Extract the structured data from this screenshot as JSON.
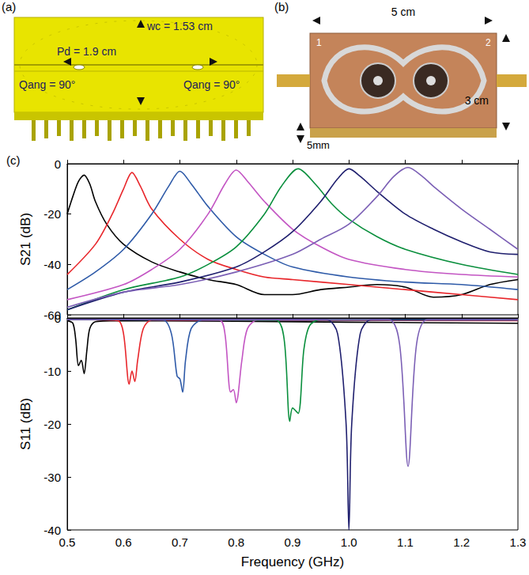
{
  "panel_a": {
    "letter": "(a)",
    "labels": {
      "width": "wc = 1.53 cm",
      "pitch": "Pd = 1.9 cm",
      "angle_left": "Qang = 90°",
      "angle_right": "Qang = 90°"
    }
  },
  "panel_b": {
    "letter": "(b)",
    "labels": {
      "length": "5 cm",
      "width": "3 cm",
      "height": "5mm",
      "port_1": "1",
      "port_2": "2"
    }
  },
  "panel_c": {
    "letter": "(c)"
  },
  "chart_data": [
    {
      "type": "line",
      "y_label": "S21 (dB)",
      "xlim": [
        0.5,
        1.3
      ],
      "xticks": [
        0.5,
        0.6,
        0.7,
        0.8,
        0.9,
        {
          "value": 1,
          "label": "1.0"
        },
        1.1,
        1.2,
        1.3
      ],
      "ylim": [
        -60,
        0
      ],
      "yticks": [
        -60,
        -40,
        -20,
        0
      ],
      "tick_labels": "y",
      "grid": false,
      "series": [
        {
          "color": "#000000",
          "x": [
            0.5,
            0.51,
            0.52,
            0.53,
            0.54,
            0.55,
            0.57,
            0.6,
            0.65,
            0.7,
            0.75,
            0.8,
            0.85,
            0.9,
            0.95,
            1.0,
            1.05,
            1.1,
            1.15,
            1.2,
            1.25,
            1.3
          ],
          "values": [
            -20,
            -13,
            -7,
            -4.5,
            -8,
            -15,
            -24,
            -32,
            -39,
            -43,
            -46,
            -48,
            -52,
            -52,
            -50,
            -49,
            -48,
            -49,
            -53,
            -52,
            -48,
            -46
          ]
        },
        {
          "color": "#e8262b",
          "x": [
            0.5,
            0.55,
            0.58,
            0.6,
            0.615,
            0.63,
            0.65,
            0.7,
            0.75,
            0.8,
            0.85,
            0.9,
            1.0,
            1.1,
            1.2,
            1.3
          ],
          "values": [
            -44,
            -32,
            -20,
            -10,
            -3.5,
            -9,
            -18,
            -30,
            -38,
            -42,
            -45,
            -46,
            -48,
            -50,
            -52,
            -54
          ]
        },
        {
          "color": "#2e5aa8",
          "x": [
            0.5,
            0.55,
            0.6,
            0.65,
            0.68,
            0.7,
            0.72,
            0.75,
            0.8,
            0.85,
            0.9,
            1.0,
            1.1,
            1.2,
            1.3
          ],
          "values": [
            -50,
            -43,
            -34,
            -20,
            -9,
            -3,
            -8,
            -17,
            -29,
            -36,
            -41,
            -45,
            -47,
            -48,
            -50
          ]
        },
        {
          "color": "#c355c3",
          "x": [
            0.5,
            0.6,
            0.65,
            0.7,
            0.75,
            0.78,
            0.8,
            0.82,
            0.85,
            0.9,
            0.95,
            1.0,
            1.1,
            1.2,
            1.3
          ],
          "values": [
            -54,
            -48,
            -42,
            -34,
            -20,
            -8,
            -2.5,
            -7,
            -15,
            -26,
            -33,
            -38,
            -42,
            -44,
            -45
          ]
        },
        {
          "color": "#0a8f3d",
          "x": [
            0.5,
            0.6,
            0.7,
            0.75,
            0.8,
            0.85,
            0.88,
            0.91,
            0.94,
            0.97,
            1.0,
            1.05,
            1.1,
            1.2,
            1.3
          ],
          "values": [
            -58,
            -50,
            -45,
            -40,
            -33,
            -20,
            -9,
            -2,
            -8,
            -16,
            -22,
            -29,
            -34,
            -40,
            -44
          ]
        },
        {
          "color": "#1f1f6e",
          "x": [
            0.5,
            0.6,
            0.7,
            0.8,
            0.85,
            0.9,
            0.95,
            0.98,
            1.0,
            1.02,
            1.05,
            1.1,
            1.15,
            1.2,
            1.25,
            1.3
          ],
          "values": [
            -58,
            -51,
            -47,
            -41,
            -35,
            -27,
            -15,
            -6,
            -2,
            -5,
            -11,
            -20,
            -26,
            -31,
            -35,
            -36
          ]
        },
        {
          "color": "#7b5fb5",
          "x": [
            0.5,
            0.6,
            0.7,
            0.8,
            0.9,
            0.95,
            1.0,
            1.05,
            1.08,
            1.105,
            1.13,
            1.15,
            1.2,
            1.25,
            1.3
          ],
          "values": [
            -57,
            -51,
            -48,
            -43,
            -36,
            -30,
            -24,
            -13,
            -5,
            -1.5,
            -5,
            -9,
            -18,
            -26,
            -34
          ]
        }
      ]
    },
    {
      "type": "line",
      "y_label": "S11 (dB)",
      "x_label": "Frequency (GHz)",
      "xlim": [
        0.5,
        1.3
      ],
      "xticks": [
        0.5,
        0.6,
        0.7,
        0.8,
        0.9,
        {
          "value": 1,
          "label": "1.0"
        },
        1.1,
        1.2,
        1.3
      ],
      "ylim": [
        -40,
        0
      ],
      "yticks": [
        -40,
        -30,
        -20,
        -10,
        0
      ],
      "grid": false,
      "series": [
        {
          "color": "#000000",
          "x": [
            0.5,
            0.51,
            0.515,
            0.52,
            0.525,
            0.53,
            0.535,
            0.54,
            0.55,
            0.6,
            1.0,
            1.3
          ],
          "values": [
            -0.5,
            -1,
            -4,
            -9,
            -8,
            -10.5,
            -6,
            -2,
            -0.7,
            -0.5,
            -0.8,
            -1
          ]
        },
        {
          "color": "#e8262b",
          "x": [
            0.5,
            0.59,
            0.6,
            0.61,
            0.615,
            0.62,
            0.625,
            0.635,
            0.65,
            1.3
          ],
          "values": [
            -0.3,
            -0.5,
            -3,
            -12.5,
            -10,
            -12,
            -8,
            -2,
            -0.4,
            -0.5
          ]
        },
        {
          "color": "#2e5aa8",
          "x": [
            0.5,
            0.67,
            0.685,
            0.695,
            0.7,
            0.705,
            0.71,
            0.72,
            0.74,
            1.3
          ],
          "values": [
            -0.3,
            -0.4,
            -3,
            -11,
            -11.5,
            -14,
            -8,
            -2,
            -0.4,
            -0.4
          ]
        },
        {
          "color": "#c355c3",
          "x": [
            0.5,
            0.77,
            0.78,
            0.79,
            0.795,
            0.8,
            0.81,
            0.82,
            0.84,
            1.3
          ],
          "values": [
            -0.3,
            -0.4,
            -3,
            -14,
            -13.5,
            -16,
            -8,
            -2,
            -0.3,
            -0.3
          ]
        },
        {
          "color": "#0a8f3d",
          "x": [
            0.5,
            0.87,
            0.885,
            0.895,
            0.9,
            0.91,
            0.92,
            0.93,
            0.95,
            1.3
          ],
          "values": [
            -0.3,
            -0.4,
            -4,
            -19.5,
            -17,
            -18,
            -6,
            -1.5,
            -0.3,
            -0.3
          ]
        },
        {
          "color": "#1f1f6e",
          "x": [
            0.5,
            0.96,
            0.98,
            0.995,
            1.0,
            1.005,
            1.02,
            1.04,
            1.3
          ],
          "values": [
            -0.3,
            -0.3,
            -3,
            -20,
            -40,
            -20,
            -3,
            -0.3,
            -0.3
          ]
        },
        {
          "color": "#7b5fb5",
          "x": [
            0.5,
            1.07,
            1.09,
            1.105,
            1.12,
            1.14,
            1.3
          ],
          "values": [
            -0.3,
            -0.3,
            -5,
            -28,
            -5,
            -0.3,
            -0.3
          ]
        }
      ]
    }
  ]
}
